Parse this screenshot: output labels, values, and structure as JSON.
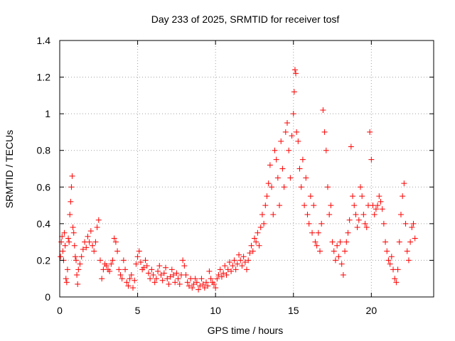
{
  "chart_data": {
    "type": "scatter",
    "title": "Day 233 of 2025, SRMTID for receiver tosf",
    "xlabel": "GPS time / hours",
    "ylabel": "SRMTID / TECUs",
    "xlim": [
      0,
      24
    ],
    "ylim": [
      0,
      1.4
    ],
    "xticks": [
      0,
      5,
      10,
      15,
      20
    ],
    "xtick_labels": [
      "0",
      "5",
      "10",
      "15",
      "20"
    ],
    "yticks": [
      0,
      0.2,
      0.4,
      0.6,
      0.8,
      1.0,
      1.2,
      1.4
    ],
    "ytick_labels": [
      "0",
      "0.2",
      "0.4",
      "0.6",
      "0.8",
      "1",
      "1.2",
      "1.4"
    ],
    "grid": true,
    "marker": "+",
    "color": "#ff0000",
    "series": [
      {
        "name": "SRMTID",
        "points": [
          [
            0.05,
            0.22
          ],
          [
            0.1,
            0.3
          ],
          [
            0.15,
            0.33
          ],
          [
            0.2,
            0.25
          ],
          [
            0.25,
            0.2
          ],
          [
            0.3,
            0.35
          ],
          [
            0.35,
            0.28
          ],
          [
            0.4,
            0.1
          ],
          [
            0.45,
            0.08
          ],
          [
            0.5,
            0.15
          ],
          [
            0.55,
            0.32
          ],
          [
            0.6,
            0.3
          ],
          [
            0.65,
            0.45
          ],
          [
            0.7,
            0.52
          ],
          [
            0.75,
            0.6
          ],
          [
            0.8,
            0.66
          ],
          [
            0.85,
            0.38
          ],
          [
            0.9,
            0.35
          ],
          [
            0.95,
            0.28
          ],
          [
            1.0,
            0.22
          ],
          [
            1.05,
            0.2
          ],
          [
            1.1,
            0.12
          ],
          [
            1.15,
            0.07
          ],
          [
            1.2,
            0.15
          ],
          [
            1.3,
            0.18
          ],
          [
            1.4,
            0.22
          ],
          [
            1.5,
            0.26
          ],
          [
            1.6,
            0.3
          ],
          [
            1.7,
            0.27
          ],
          [
            1.8,
            0.33
          ],
          [
            1.9,
            0.3
          ],
          [
            2.0,
            0.36
          ],
          [
            2.1,
            0.28
          ],
          [
            2.2,
            0.25
          ],
          [
            2.3,
            0.3
          ],
          [
            2.4,
            0.38
          ],
          [
            2.5,
            0.42
          ],
          [
            2.6,
            0.2
          ],
          [
            2.7,
            0.1
          ],
          [
            2.8,
            0.15
          ],
          [
            2.9,
            0.18
          ],
          [
            3.0,
            0.17
          ],
          [
            3.1,
            0.15
          ],
          [
            3.2,
            0.14
          ],
          [
            3.3,
            0.18
          ],
          [
            3.4,
            0.2
          ],
          [
            3.5,
            0.32
          ],
          [
            3.6,
            0.3
          ],
          [
            3.7,
            0.25
          ],
          [
            3.8,
            0.15
          ],
          [
            3.9,
            0.12
          ],
          [
            4.0,
            0.1
          ],
          [
            4.1,
            0.2
          ],
          [
            4.2,
            0.15
          ],
          [
            4.3,
            0.08
          ],
          [
            4.4,
            0.06
          ],
          [
            4.5,
            0.1
          ],
          [
            4.6,
            0.12
          ],
          [
            4.7,
            0.05
          ],
          [
            4.8,
            0.09
          ],
          [
            4.9,
            0.18
          ],
          [
            5.0,
            0.22
          ],
          [
            5.1,
            0.25
          ],
          [
            5.2,
            0.19
          ],
          [
            5.3,
            0.15
          ],
          [
            5.4,
            0.16
          ],
          [
            5.5,
            0.2
          ],
          [
            5.6,
            0.17
          ],
          [
            5.7,
            0.13
          ],
          [
            5.8,
            0.1
          ],
          [
            5.9,
            0.15
          ],
          [
            6.0,
            0.12
          ],
          [
            6.1,
            0.08
          ],
          [
            6.2,
            0.1
          ],
          [
            6.3,
            0.14
          ],
          [
            6.4,
            0.17
          ],
          [
            6.5,
            0.12
          ],
          [
            6.6,
            0.09
          ],
          [
            6.7,
            0.13
          ],
          [
            6.8,
            0.16
          ],
          [
            6.9,
            0.1
          ],
          [
            7.0,
            0.07
          ],
          [
            7.1,
            0.11
          ],
          [
            7.2,
            0.15
          ],
          [
            7.3,
            0.12
          ],
          [
            7.4,
            0.08
          ],
          [
            7.5,
            0.13
          ],
          [
            7.6,
            0.1
          ],
          [
            7.7,
            0.07
          ],
          [
            7.8,
            0.12
          ],
          [
            7.9,
            0.2
          ],
          [
            8.0,
            0.17
          ],
          [
            8.1,
            0.12
          ],
          [
            8.2,
            0.08
          ],
          [
            8.3,
            0.06
          ],
          [
            8.4,
            0.1
          ],
          [
            8.5,
            0.05
          ],
          [
            8.6,
            0.07
          ],
          [
            8.7,
            0.1
          ],
          [
            8.8,
            0.08
          ],
          [
            8.9,
            0.04
          ],
          [
            9.0,
            0.06
          ],
          [
            9.1,
            0.1
          ],
          [
            9.2,
            0.07
          ],
          [
            9.3,
            0.05
          ],
          [
            9.4,
            0.08
          ],
          [
            9.5,
            0.06
          ],
          [
            9.6,
            0.14
          ],
          [
            9.7,
            0.1
          ],
          [
            9.8,
            0.08
          ],
          [
            9.9,
            0.07
          ],
          [
            10.0,
            0.05
          ],
          [
            10.1,
            0.1
          ],
          [
            10.2,
            0.12
          ],
          [
            10.3,
            0.15
          ],
          [
            10.4,
            0.11
          ],
          [
            10.5,
            0.13
          ],
          [
            10.6,
            0.17
          ],
          [
            10.7,
            0.12
          ],
          [
            10.8,
            0.15
          ],
          [
            10.9,
            0.19
          ],
          [
            11.0,
            0.14
          ],
          [
            11.1,
            0.17
          ],
          [
            11.2,
            0.2
          ],
          [
            11.3,
            0.15
          ],
          [
            11.4,
            0.18
          ],
          [
            11.5,
            0.23
          ],
          [
            11.6,
            0.2
          ],
          [
            11.7,
            0.17
          ],
          [
            11.8,
            0.22
          ],
          [
            11.9,
            0.19
          ],
          [
            12.0,
            0.15
          ],
          [
            12.1,
            0.2
          ],
          [
            12.2,
            0.24
          ],
          [
            12.3,
            0.28
          ],
          [
            12.4,
            0.25
          ],
          [
            12.5,
            0.32
          ],
          [
            12.6,
            0.3
          ],
          [
            12.7,
            0.35
          ],
          [
            12.8,
            0.28
          ],
          [
            12.9,
            0.38
          ],
          [
            13.0,
            0.45
          ],
          [
            13.1,
            0.4
          ],
          [
            13.2,
            0.5
          ],
          [
            13.3,
            0.55
          ],
          [
            13.4,
            0.62
          ],
          [
            13.5,
            0.72
          ],
          [
            13.6,
            0.6
          ],
          [
            13.7,
            0.45
          ],
          [
            13.8,
            0.8
          ],
          [
            13.9,
            0.75
          ],
          [
            14.0,
            0.65
          ],
          [
            14.1,
            0.5
          ],
          [
            14.2,
            0.85
          ],
          [
            14.3,
            0.7
          ],
          [
            14.4,
            0.6
          ],
          [
            14.5,
            0.9
          ],
          [
            14.6,
            0.95
          ],
          [
            14.7,
            0.8
          ],
          [
            14.8,
            0.65
          ],
          [
            14.9,
            0.88
          ],
          [
            15.0,
            1.0
          ],
          [
            15.05,
            1.12
          ],
          [
            15.1,
            1.24
          ],
          [
            15.15,
            1.22
          ],
          [
            15.2,
            0.9
          ],
          [
            15.3,
            0.85
          ],
          [
            15.4,
            0.7
          ],
          [
            15.5,
            0.6
          ],
          [
            15.6,
            0.75
          ],
          [
            15.7,
            0.5
          ],
          [
            15.8,
            0.65
          ],
          [
            15.9,
            0.45
          ],
          [
            16.0,
            0.4
          ],
          [
            16.1,
            0.55
          ],
          [
            16.2,
            0.35
          ],
          [
            16.3,
            0.5
          ],
          [
            16.4,
            0.3
          ],
          [
            16.5,
            0.28
          ],
          [
            16.6,
            0.35
          ],
          [
            16.7,
            0.25
          ],
          [
            16.8,
            0.4
          ],
          [
            16.9,
            1.02
          ],
          [
            17.0,
            0.9
          ],
          [
            17.1,
            0.8
          ],
          [
            17.2,
            0.6
          ],
          [
            17.3,
            0.45
          ],
          [
            17.4,
            0.5
          ],
          [
            17.5,
            0.3
          ],
          [
            17.6,
            0.25
          ],
          [
            17.7,
            0.2
          ],
          [
            17.8,
            0.28
          ],
          [
            17.9,
            0.22
          ],
          [
            18.0,
            0.3
          ],
          [
            18.1,
            0.18
          ],
          [
            18.2,
            0.12
          ],
          [
            18.3,
            0.25
          ],
          [
            18.4,
            0.3
          ],
          [
            18.5,
            0.35
          ],
          [
            18.6,
            0.42
          ],
          [
            18.7,
            0.82
          ],
          [
            18.8,
            0.55
          ],
          [
            18.9,
            0.5
          ],
          [
            19.0,
            0.45
          ],
          [
            19.1,
            0.38
          ],
          [
            19.2,
            0.42
          ],
          [
            19.3,
            0.6
          ],
          [
            19.4,
            0.55
          ],
          [
            19.5,
            0.45
          ],
          [
            19.6,
            0.4
          ],
          [
            19.7,
            0.38
          ],
          [
            19.8,
            0.5
          ],
          [
            19.9,
            0.9
          ],
          [
            20.0,
            0.75
          ],
          [
            20.1,
            0.5
          ],
          [
            20.2,
            0.45
          ],
          [
            20.3,
            0.48
          ],
          [
            20.4,
            0.5
          ],
          [
            20.5,
            0.55
          ],
          [
            20.6,
            0.52
          ],
          [
            20.7,
            0.48
          ],
          [
            20.8,
            0.4
          ],
          [
            20.9,
            0.3
          ],
          [
            21.0,
            0.25
          ],
          [
            21.1,
            0.2
          ],
          [
            21.2,
            0.18
          ],
          [
            21.3,
            0.22
          ],
          [
            21.4,
            0.15
          ],
          [
            21.5,
            0.1
          ],
          [
            21.6,
            0.08
          ],
          [
            21.7,
            0.15
          ],
          [
            21.8,
            0.3
          ],
          [
            21.9,
            0.45
          ],
          [
            22.0,
            0.55
          ],
          [
            22.1,
            0.62
          ],
          [
            22.2,
            0.4
          ],
          [
            22.3,
            0.25
          ],
          [
            22.4,
            0.2
          ],
          [
            22.5,
            0.3
          ],
          [
            22.6,
            0.38
          ],
          [
            22.7,
            0.4
          ],
          [
            22.8,
            0.32
          ]
        ]
      }
    ]
  }
}
